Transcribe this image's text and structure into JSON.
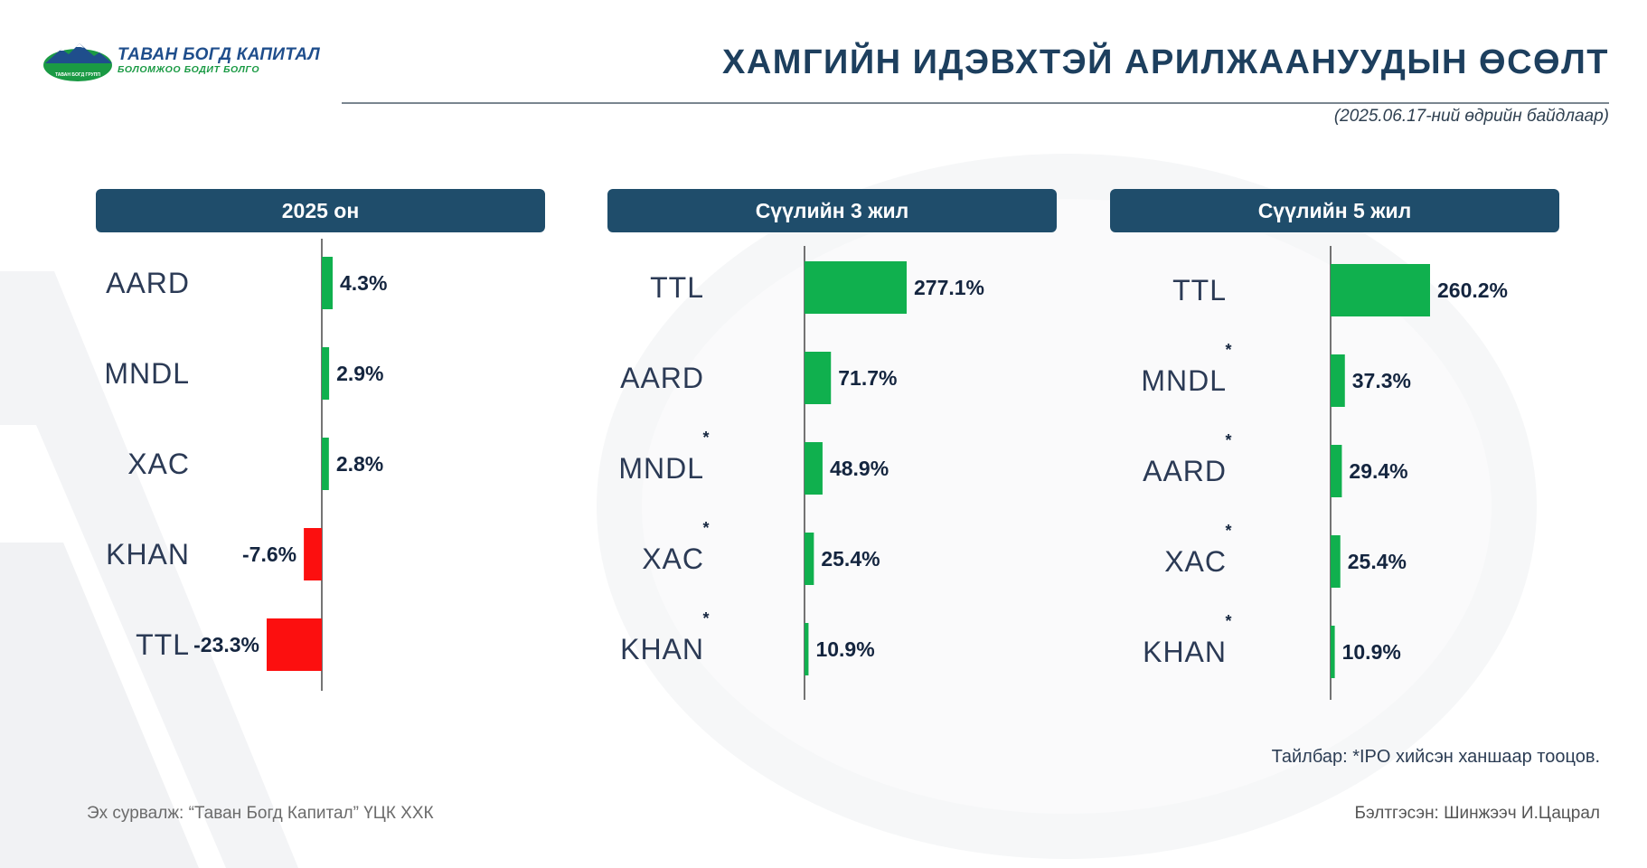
{
  "logo": {
    "name": "ТАВАН БОГД КАПИТАЛ",
    "tagline": "БОЛОМЖОО БОДИТ БОЛГО",
    "mini_text": "ТАВАН БОГД ГРУПП"
  },
  "header": {
    "title": "ХАМГИЙН ИДЭВХТЭЙ АРИЛЖААНУУДЫН ӨСӨЛТ",
    "date_note": "(2025.06.17-ний өдрийн байдлаар)"
  },
  "colors": {
    "positive": "#10b04e",
    "negative": "#fc0f0f",
    "panel_header": "#1f4d6b",
    "title": "#1d3f5e",
    "label": "#2b3a55",
    "value": "#14253f"
  },
  "chart_data": [
    {
      "type": "bar",
      "orientation": "horizontal",
      "title": "2025 он",
      "categories": [
        "AARD",
        "MNDL",
        "XAC",
        "KHAN",
        "TTL"
      ],
      "values": [
        4.3,
        2.9,
        2.8,
        -7.6,
        -23.3
      ],
      "value_labels": [
        "4.3%",
        "2.9%",
        "2.8%",
        "-7.6%",
        "-23.3%"
      ],
      "ipo_mark": [
        false,
        false,
        false,
        false,
        false
      ],
      "xlim": [
        -23.3,
        0
      ],
      "grid": false
    },
    {
      "type": "bar",
      "orientation": "horizontal",
      "title": "Сүүлийн 3 жил",
      "categories": [
        "TTL",
        "AARD",
        "MNDL",
        "XAC",
        "KHAN"
      ],
      "values": [
        277.1,
        71.7,
        48.9,
        25.4,
        10.9
      ],
      "value_labels": [
        "277.1%",
        "71.7%",
        "48.9%",
        "25.4%",
        "10.9%"
      ],
      "ipo_mark": [
        false,
        false,
        true,
        true,
        true
      ],
      "xlim": [
        0,
        277.1
      ],
      "grid": false
    },
    {
      "type": "bar",
      "orientation": "horizontal",
      "title": "Сүүлийн 5 жил",
      "categories": [
        "TTL",
        "MNDL",
        "AARD",
        "XAC",
        "KHAN"
      ],
      "values": [
        260.2,
        37.3,
        29.4,
        25.4,
        10.9
      ],
      "value_labels": [
        "260.2%",
        "37.3%",
        "29.4%",
        "25.4%",
        "10.9%"
      ],
      "ipo_mark": [
        false,
        true,
        true,
        true,
        true
      ],
      "xlim": [
        0,
        260.2
      ],
      "grid": false
    }
  ],
  "footnote": "Тайлбар: *IPO хийсэн ханшаар тооцов.",
  "source": "Эх сурвалж: “Таван Богд Капитал” ҮЦК ХХК",
  "prepared_by": "Бэлтгэсэн: Шинжээч И.Цацрал",
  "ipo_marker_symbol": "*"
}
